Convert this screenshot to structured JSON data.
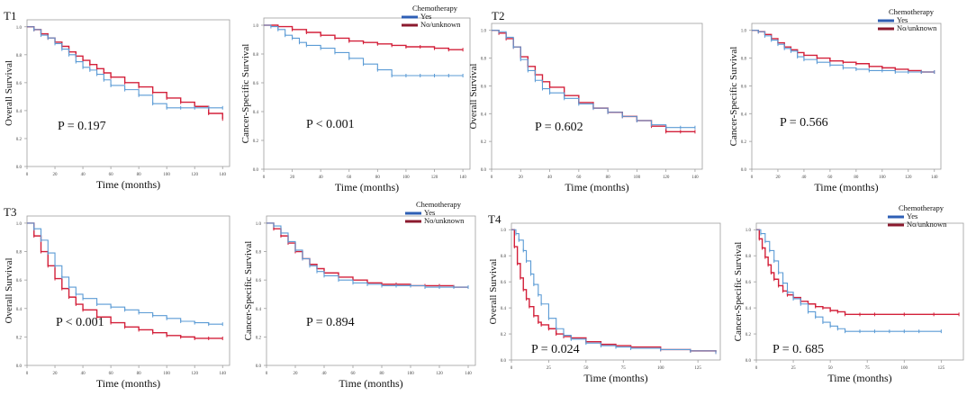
{
  "figure": {
    "colors": {
      "chemo": "#5b9bd5",
      "no_chemo": "#d3203a",
      "legend_yes": "#2e5fb5",
      "legend_no": "#8b1a2e",
      "axis": "#9e9e9e"
    }
  },
  "chart_data": [
    {
      "panel": "T1",
      "type": "line",
      "ylabel": "Overall Survival",
      "xlabel": "Time (months)",
      "xlim": [
        0,
        145
      ],
      "xticks": [
        0,
        20,
        40,
        60,
        80,
        100,
        120,
        140
      ],
      "ylim": [
        0,
        1.05
      ],
      "yticks": [
        0.0,
        0.2,
        0.4,
        0.6,
        0.8,
        1.0
      ],
      "p_value": "P = 0.197",
      "show_legend": false,
      "series": [
        {
          "name": "Yes",
          "x": [
            0,
            5,
            10,
            15,
            20,
            25,
            30,
            35,
            40,
            45,
            50,
            55,
            60,
            70,
            80,
            90,
            100,
            110,
            120,
            130,
            140
          ],
          "y": [
            1.0,
            0.98,
            0.94,
            0.92,
            0.88,
            0.84,
            0.8,
            0.75,
            0.71,
            0.69,
            0.66,
            0.62,
            0.58,
            0.55,
            0.51,
            0.45,
            0.42,
            0.42,
            0.42,
            0.42,
            0.42
          ]
        },
        {
          "name": "No/unknown",
          "x": [
            0,
            5,
            10,
            15,
            20,
            25,
            30,
            35,
            40,
            45,
            50,
            55,
            60,
            70,
            80,
            90,
            100,
            110,
            120,
            130,
            140
          ],
          "y": [
            1.0,
            0.98,
            0.95,
            0.92,
            0.89,
            0.86,
            0.82,
            0.79,
            0.76,
            0.73,
            0.7,
            0.67,
            0.64,
            0.6,
            0.57,
            0.53,
            0.49,
            0.46,
            0.43,
            0.38,
            0.34
          ]
        }
      ]
    },
    {
      "panel": "",
      "type": "line",
      "ylabel": "Cancer-Specific Survival",
      "xlabel": "Time (months)",
      "xlim": [
        0,
        145
      ],
      "xticks": [
        0,
        20,
        40,
        60,
        80,
        100,
        120,
        140
      ],
      "ylim": [
        0,
        1.05
      ],
      "yticks": [
        0.0,
        0.2,
        0.4,
        0.6,
        0.8,
        1.0
      ],
      "p_value": "P < 0.001",
      "show_legend": true,
      "legend": {
        "title": "Chemotherapy",
        "yes": "Yes",
        "no": "No/unknown"
      },
      "series": [
        {
          "name": "Yes",
          "x": [
            0,
            5,
            10,
            15,
            20,
            25,
            30,
            40,
            50,
            60,
            70,
            80,
            90,
            100,
            110,
            120,
            130,
            140
          ],
          "y": [
            1.0,
            0.99,
            0.97,
            0.93,
            0.91,
            0.88,
            0.86,
            0.84,
            0.81,
            0.77,
            0.73,
            0.69,
            0.65,
            0.65,
            0.65,
            0.65,
            0.65,
            0.65
          ]
        },
        {
          "name": "No/unknown",
          "x": [
            0,
            10,
            20,
            30,
            40,
            50,
            60,
            70,
            80,
            90,
            100,
            110,
            120,
            130,
            140
          ],
          "y": [
            1.0,
            0.99,
            0.97,
            0.95,
            0.93,
            0.91,
            0.89,
            0.88,
            0.87,
            0.86,
            0.85,
            0.85,
            0.84,
            0.83,
            0.83
          ]
        }
      ]
    },
    {
      "panel": "T2",
      "type": "line",
      "ylabel": "Overall Survival",
      "xlabel": "Time (months)",
      "xlim": [
        0,
        145
      ],
      "xticks": [
        0,
        20,
        40,
        60,
        80,
        100,
        120,
        140
      ],
      "ylim": [
        0,
        1.05
      ],
      "yticks": [
        0.0,
        0.2,
        0.4,
        0.6,
        0.8,
        1.0
      ],
      "p_value": "P = 0.602",
      "show_legend": false,
      "series": [
        {
          "name": "Yes",
          "x": [
            0,
            5,
            10,
            15,
            20,
            25,
            30,
            35,
            40,
            50,
            60,
            70,
            80,
            90,
            100,
            110,
            120,
            130,
            140
          ],
          "y": [
            1.0,
            0.99,
            0.95,
            0.88,
            0.79,
            0.71,
            0.64,
            0.58,
            0.55,
            0.51,
            0.47,
            0.44,
            0.41,
            0.38,
            0.35,
            0.32,
            0.3,
            0.3,
            0.3
          ]
        },
        {
          "name": "No/unknown",
          "x": [
            0,
            5,
            10,
            15,
            20,
            25,
            30,
            35,
            40,
            50,
            60,
            70,
            80,
            90,
            100,
            110,
            120,
            130,
            140
          ],
          "y": [
            1.0,
            0.98,
            0.94,
            0.88,
            0.81,
            0.74,
            0.68,
            0.63,
            0.59,
            0.53,
            0.48,
            0.44,
            0.41,
            0.38,
            0.35,
            0.31,
            0.27,
            0.27,
            0.27
          ]
        }
      ]
    },
    {
      "panel": "",
      "type": "line",
      "ylabel": "Cancer-Specific Survival",
      "xlabel": "Time (months)",
      "xlim": [
        0,
        145
      ],
      "xticks": [
        0,
        20,
        40,
        60,
        80,
        100,
        120,
        140
      ],
      "ylim": [
        0,
        1.05
      ],
      "yticks": [
        0.0,
        0.2,
        0.4,
        0.6,
        0.8,
        1.0
      ],
      "p_value": "P = 0.566",
      "show_legend": true,
      "legend": {
        "title": "Chemotherapy",
        "yes": "Yes",
        "no": "No/unknown"
      },
      "series": [
        {
          "name": "Yes",
          "x": [
            0,
            5,
            10,
            15,
            20,
            25,
            30,
            35,
            40,
            50,
            60,
            70,
            80,
            90,
            100,
            110,
            120,
            130,
            140
          ],
          "y": [
            1.0,
            0.99,
            0.96,
            0.93,
            0.9,
            0.87,
            0.85,
            0.81,
            0.79,
            0.77,
            0.75,
            0.73,
            0.72,
            0.71,
            0.71,
            0.7,
            0.7,
            0.7,
            0.7
          ]
        },
        {
          "name": "No/unknown",
          "x": [
            0,
            5,
            10,
            15,
            20,
            25,
            30,
            35,
            40,
            50,
            60,
            70,
            80,
            90,
            100,
            110,
            120,
            130,
            140
          ],
          "y": [
            1.0,
            0.99,
            0.97,
            0.94,
            0.91,
            0.88,
            0.86,
            0.84,
            0.82,
            0.8,
            0.78,
            0.77,
            0.76,
            0.74,
            0.73,
            0.72,
            0.71,
            0.7,
            0.7
          ]
        }
      ]
    },
    {
      "panel": "T3",
      "type": "line",
      "ylabel": "Overall Survival",
      "xlabel": "Time (months)",
      "xlim": [
        0,
        145
      ],
      "xticks": [
        0,
        20,
        40,
        60,
        80,
        100,
        120,
        140
      ],
      "ylim": [
        0,
        1.05
      ],
      "yticks": [
        0.0,
        0.2,
        0.4,
        0.6,
        0.8,
        1.0
      ],
      "p_value": "P < 0.001",
      "show_legend": false,
      "series": [
        {
          "name": "Yes",
          "x": [
            0,
            5,
            10,
            15,
            20,
            25,
            30,
            35,
            40,
            50,
            60,
            70,
            80,
            90,
            100,
            110,
            120,
            130,
            140
          ],
          "y": [
            1.0,
            0.96,
            0.88,
            0.79,
            0.7,
            0.62,
            0.55,
            0.5,
            0.47,
            0.43,
            0.41,
            0.39,
            0.37,
            0.35,
            0.33,
            0.31,
            0.3,
            0.29,
            0.29
          ]
        },
        {
          "name": "No/unknown",
          "x": [
            0,
            5,
            10,
            15,
            20,
            25,
            30,
            35,
            40,
            50,
            60,
            70,
            80,
            90,
            100,
            110,
            120,
            130,
            140
          ],
          "y": [
            1.0,
            0.91,
            0.8,
            0.7,
            0.61,
            0.54,
            0.48,
            0.43,
            0.39,
            0.34,
            0.3,
            0.27,
            0.25,
            0.23,
            0.21,
            0.2,
            0.19,
            0.19,
            0.19
          ]
        }
      ]
    },
    {
      "panel": "",
      "type": "line",
      "ylabel": "Cancer-Specific Survival",
      "xlabel": "Time (months)",
      "xlim": [
        0,
        145
      ],
      "xticks": [
        0,
        20,
        40,
        60,
        80,
        100,
        120,
        140
      ],
      "ylim": [
        0,
        1.05
      ],
      "yticks": [
        0.0,
        0.2,
        0.4,
        0.6,
        0.8,
        1.0
      ],
      "p_value": "P = 0.894",
      "show_legend": true,
      "legend": {
        "title": "Chemotherapy",
        "yes": "Yes",
        "no": "No/unknown"
      },
      "series": [
        {
          "name": "Yes",
          "x": [
            0,
            5,
            10,
            15,
            20,
            25,
            30,
            35,
            40,
            50,
            60,
            70,
            80,
            90,
            100,
            110,
            120,
            130,
            140
          ],
          "y": [
            1.0,
            0.98,
            0.93,
            0.87,
            0.81,
            0.75,
            0.7,
            0.66,
            0.63,
            0.6,
            0.58,
            0.57,
            0.56,
            0.56,
            0.56,
            0.55,
            0.55,
            0.55,
            0.55
          ]
        },
        {
          "name": "No/unknown",
          "x": [
            0,
            5,
            10,
            15,
            20,
            25,
            30,
            35,
            40,
            50,
            60,
            70,
            80,
            90,
            100,
            110,
            120,
            130,
            140
          ],
          "y": [
            1.0,
            0.96,
            0.91,
            0.86,
            0.8,
            0.75,
            0.71,
            0.68,
            0.65,
            0.62,
            0.6,
            0.58,
            0.57,
            0.57,
            0.56,
            0.56,
            0.56,
            0.55,
            0.55
          ]
        }
      ]
    },
    {
      "panel": "T4",
      "type": "line",
      "ylabel": "Overall Survival",
      "xlabel": "Time (months)",
      "xlim": [
        0,
        140
      ],
      "xticks": [
        0,
        25,
        50,
        75,
        100,
        125
      ],
      "ylim": [
        0,
        1.05
      ],
      "yticks": [
        0.0,
        0.2,
        0.4,
        0.6,
        0.8,
        1.0
      ],
      "p_value": "P = 0.024",
      "show_legend": false,
      "series": [
        {
          "name": "Yes",
          "x": [
            0,
            3,
            5,
            8,
            10,
            13,
            15,
            18,
            20,
            25,
            30,
            35,
            40,
            50,
            60,
            70,
            80,
            100,
            120,
            137
          ],
          "y": [
            1.0,
            0.97,
            0.92,
            0.84,
            0.76,
            0.66,
            0.58,
            0.5,
            0.43,
            0.32,
            0.24,
            0.19,
            0.16,
            0.13,
            0.11,
            0.1,
            0.09,
            0.08,
            0.07,
            0.06
          ]
        },
        {
          "name": "No/unknown",
          "x": [
            0,
            2,
            4,
            6,
            8,
            10,
            12,
            15,
            18,
            20,
            25,
            30,
            35,
            40,
            50,
            60,
            70,
            80,
            100,
            120,
            137
          ],
          "y": [
            1.0,
            0.87,
            0.74,
            0.63,
            0.54,
            0.47,
            0.41,
            0.34,
            0.29,
            0.27,
            0.24,
            0.2,
            0.18,
            0.17,
            0.14,
            0.12,
            0.11,
            0.1,
            0.08,
            0.07,
            0.06
          ]
        }
      ]
    },
    {
      "panel": "",
      "type": "line",
      "ylabel": "Cancer-Specific Survival",
      "xlabel": "Time (months)",
      "xlim": [
        0,
        140
      ],
      "xticks": [
        0,
        25,
        50,
        75,
        100,
        125
      ],
      "ylim": [
        0,
        1.05
      ],
      "yticks": [
        0.0,
        0.2,
        0.4,
        0.6,
        0.8,
        1.0
      ],
      "p_value": "P = 0. 685",
      "show_legend": true,
      "legend": {
        "title": "Chemotherapy",
        "yes": "Yes",
        "no": "No/unknown"
      },
      "series": [
        {
          "name": "Yes",
          "x": [
            0,
            3,
            6,
            9,
            12,
            15,
            18,
            21,
            25,
            30,
            35,
            40,
            45,
            50,
            55,
            60,
            70,
            80,
            90,
            100,
            110,
            125
          ],
          "y": [
            1.0,
            0.97,
            0.91,
            0.84,
            0.76,
            0.67,
            0.59,
            0.52,
            0.47,
            0.43,
            0.37,
            0.33,
            0.29,
            0.26,
            0.24,
            0.22,
            0.22,
            0.22,
            0.22,
            0.22,
            0.22,
            0.22
          ]
        },
        {
          "name": "No/unknown",
          "x": [
            0,
            2,
            4,
            6,
            8,
            10,
            12,
            15,
            18,
            21,
            25,
            30,
            35,
            40,
            45,
            50,
            55,
            60,
            70,
            80,
            100,
            120,
            137
          ],
          "y": [
            1.0,
            0.93,
            0.86,
            0.79,
            0.73,
            0.67,
            0.62,
            0.57,
            0.53,
            0.5,
            0.48,
            0.45,
            0.43,
            0.41,
            0.4,
            0.38,
            0.37,
            0.35,
            0.35,
            0.35,
            0.35,
            0.35,
            0.35
          ]
        }
      ]
    }
  ]
}
